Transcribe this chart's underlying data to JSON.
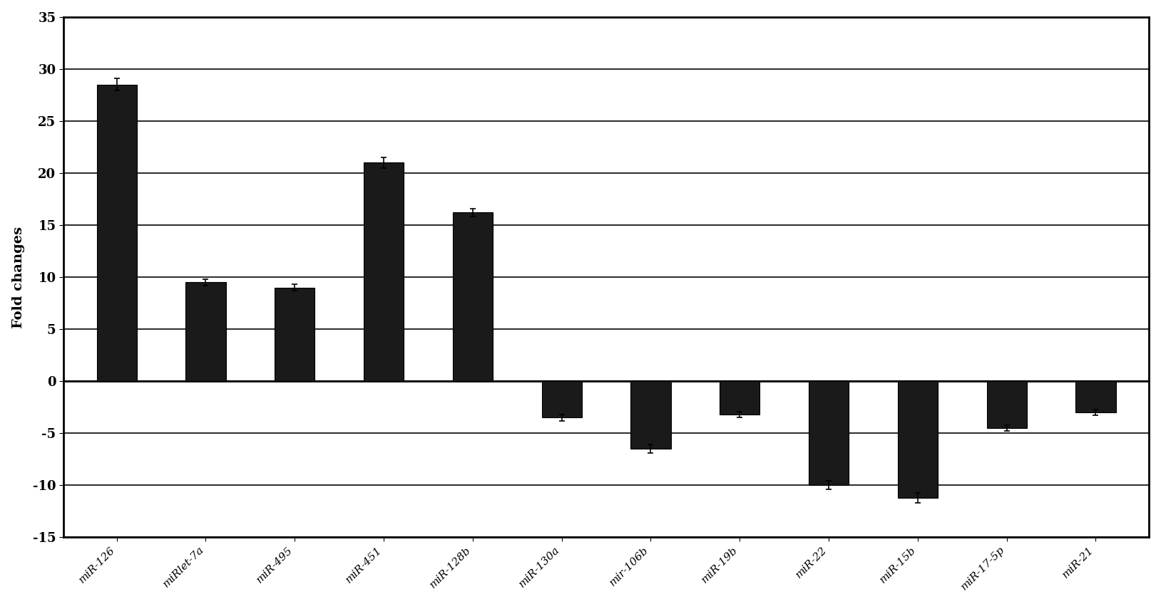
{
  "categories": [
    "miR-126",
    "miRlet-7a",
    "miR-495",
    "miR-451",
    "miR-128b",
    "miR-130a",
    "mir-106b",
    "miR-19b",
    "miR-22",
    "miR-15b",
    "miR-17-5p",
    "miR-21"
  ],
  "values": [
    28.5,
    9.5,
    9.0,
    21.0,
    16.2,
    -3.5,
    -6.5,
    -3.2,
    -10.0,
    -11.2,
    -4.5,
    -3.0
  ],
  "errors": [
    0.6,
    0.3,
    0.3,
    0.5,
    0.4,
    0.3,
    0.4,
    0.3,
    0.4,
    0.5,
    0.3,
    0.3
  ],
  "bar_color": "#1a1a1a",
  "bar_edge_color": "#000000",
  "ylabel": "Fold changes",
  "ylim": [
    -15,
    35
  ],
  "yticks": [
    -15,
    -10,
    -5,
    0,
    5,
    10,
    15,
    20,
    25,
    30,
    35
  ],
  "background_color": "#ffffff",
  "grid_color": "#555555",
  "ylabel_fontsize": 14,
  "tick_fontsize": 13,
  "xlabel_fontsize": 11,
  "bar_width": 0.45,
  "capsize": 3
}
